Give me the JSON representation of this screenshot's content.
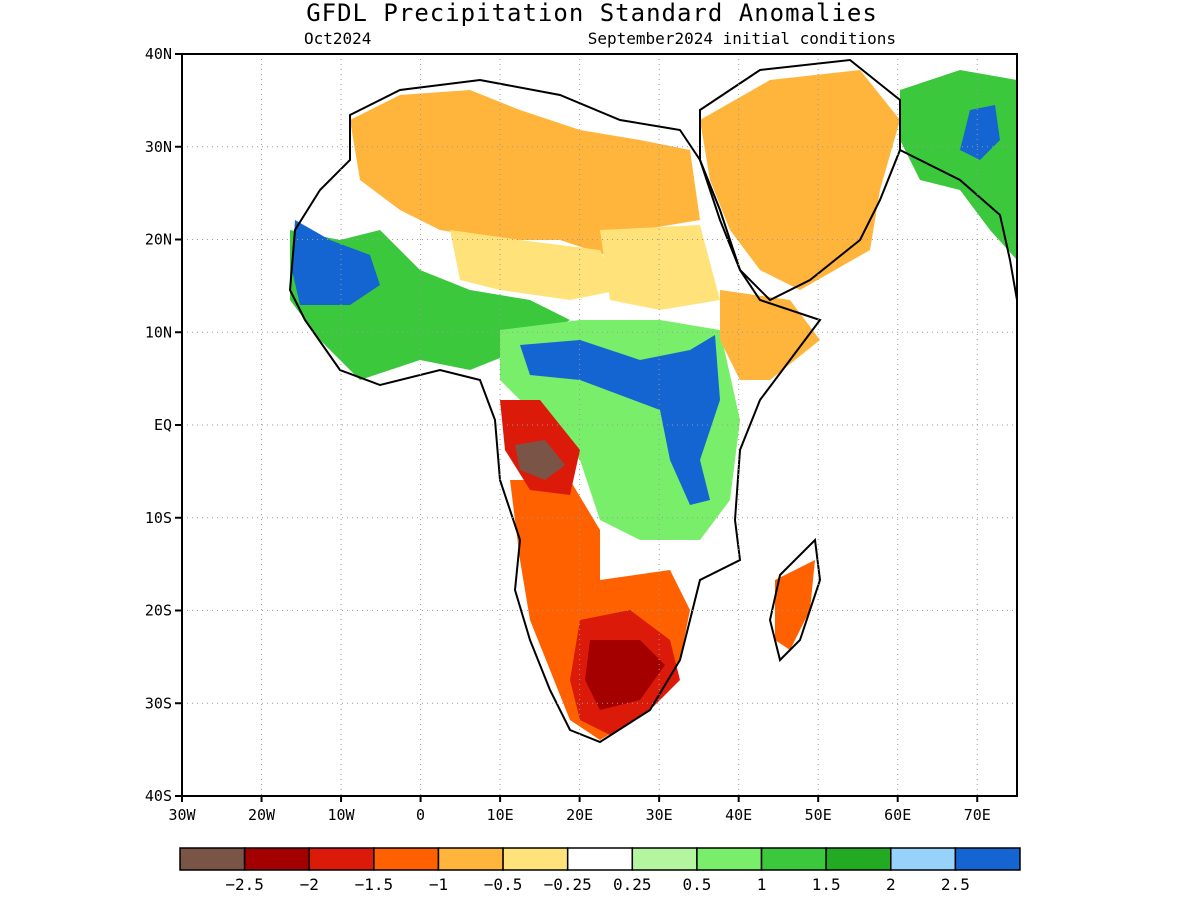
{
  "title": "GFDL Precipitation Standard Anomalies",
  "subtitle_left": "Oct2024",
  "subtitle_right": "September2024 initial conditions",
  "map": {
    "lon_range": [
      -30,
      75
    ],
    "lat_range": [
      -40,
      40
    ],
    "lat_ticks": [
      {
        "value": 40,
        "label": "40N"
      },
      {
        "value": 30,
        "label": "30N"
      },
      {
        "value": 20,
        "label": "20N"
      },
      {
        "value": 10,
        "label": "10N"
      },
      {
        "value": 0,
        "label": "EQ"
      },
      {
        "value": -10,
        "label": "10S"
      },
      {
        "value": -20,
        "label": "20S"
      },
      {
        "value": -30,
        "label": "30S"
      },
      {
        "value": -40,
        "label": "40S"
      }
    ],
    "lon_ticks": [
      {
        "value": -30,
        "label": "30W"
      },
      {
        "value": -20,
        "label": "20W"
      },
      {
        "value": -10,
        "label": "10W"
      },
      {
        "value": 0,
        "label": "0"
      },
      {
        "value": 10,
        "label": "10E"
      },
      {
        "value": 20,
        "label": "20E"
      },
      {
        "value": 30,
        "label": "30E"
      },
      {
        "value": 40,
        "label": "40E"
      },
      {
        "value": 50,
        "label": "50E"
      },
      {
        "value": 60,
        "label": "60E"
      },
      {
        "value": 70,
        "label": "70E"
      }
    ],
    "grid": "dotted"
  },
  "colorbar": {
    "colors": [
      "#7b5448",
      "#a50000",
      "#dc1a0a",
      "#ff6000",
      "#ffb43c",
      "#ffe37a",
      "#ffffff",
      "#b4f5a0",
      "#78ee6a",
      "#3cc83c",
      "#22aa22",
      "#96d2fa",
      "#1464d2"
    ],
    "labels": [
      "−2.5",
      "−2",
      "−1.5",
      "−1",
      "−0.5",
      "−0.25",
      "0.25",
      "0.5",
      "1",
      "1.5",
      "2",
      "2.5"
    ]
  },
  "anomaly_regions": [
    {
      "name": "south-africa-dry",
      "level": -2,
      "color_index": 2
    },
    {
      "name": "angola-congo-dry",
      "level": -2.5,
      "color_index": 0
    },
    {
      "name": "east-africa-wet",
      "level": 2.5,
      "color_index": 12
    },
    {
      "name": "central-africa-wet",
      "level": 2.5,
      "color_index": 12
    },
    {
      "name": "west-africa-wet",
      "level": 2.5,
      "color_index": 12
    },
    {
      "name": "sahara-dry",
      "level": -0.5,
      "color_index": 4
    },
    {
      "name": "arabia-dry",
      "level": -0.5,
      "color_index": 4
    }
  ]
}
